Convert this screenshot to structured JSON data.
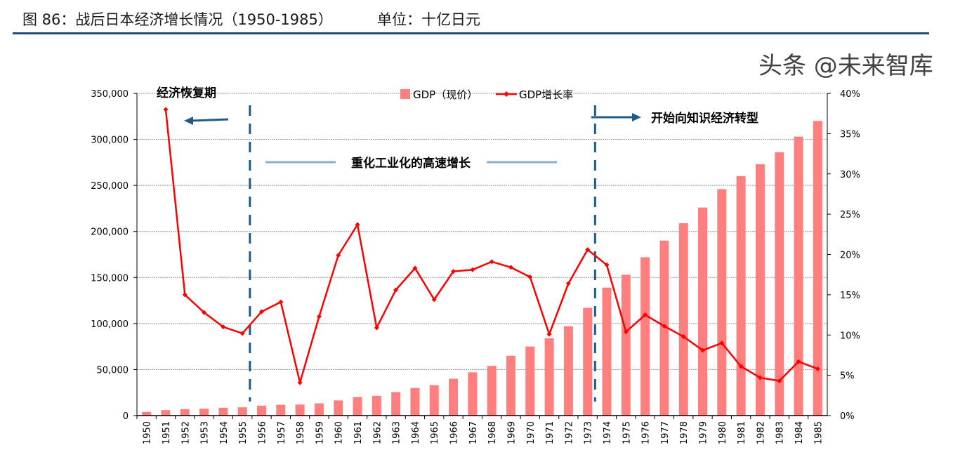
{
  "header": {
    "title": "图 86：战后日本经济增长情况（1950-1985）",
    "unit": "单位：十亿日元"
  },
  "watermark": "头条 @未来智库",
  "chart_data": {
    "type": "bar+line",
    "categories": [
      "1950",
      "1951",
      "1952",
      "1953",
      "1954",
      "1955",
      "1956",
      "1957",
      "1958",
      "1959",
      "1960",
      "1961",
      "1962",
      "1963",
      "1964",
      "1965",
      "1966",
      "1967",
      "1968",
      "1969",
      "1970",
      "1971",
      "1972",
      "1973",
      "1974",
      "1975",
      "1976",
      "1977",
      "1978",
      "1979",
      "1980",
      "1981",
      "1982",
      "1983",
      "1984",
      "1985"
    ],
    "series": [
      {
        "name": "GDP（现价）",
        "type": "bar",
        "axis": "left",
        "color": "#ff7f7f",
        "values": [
          4000,
          6000,
          7000,
          7500,
          8500,
          9000,
          10700,
          11700,
          12000,
          13300,
          16500,
          20000,
          21500,
          25500,
          30000,
          33000,
          40000,
          47000,
          54000,
          65000,
          75000,
          84000,
          97000,
          117000,
          139000,
          153000,
          172000,
          190000,
          209000,
          226000,
          246000,
          260000,
          273000,
          286000,
          303000,
          320000
        ]
      },
      {
        "name": "GDP增长率",
        "type": "line",
        "axis": "right",
        "color": "#ff0000",
        "values": [
          null,
          38.0,
          15.0,
          12.8,
          11.0,
          10.2,
          12.9,
          14.1,
          4.1,
          12.3,
          19.9,
          23.7,
          10.9,
          15.6,
          18.3,
          14.4,
          17.9,
          18.1,
          19.1,
          18.4,
          17.2,
          10.1,
          16.4,
          20.6,
          18.7,
          10.4,
          12.5,
          11.1,
          9.8,
          8.1,
          9.0,
          6.1,
          4.7,
          4.3,
          6.7,
          5.8
        ]
      }
    ],
    "left_axis": {
      "ylim": [
        0,
        350000
      ],
      "ticks": [
        "0",
        "50,000",
        "100,000",
        "150,000",
        "200,000",
        "250,000",
        "300,000",
        "350,000"
      ]
    },
    "right_axis": {
      "ylim": [
        0,
        40
      ],
      "ticks": [
        "0%",
        "5%",
        "10%",
        "15%",
        "20%",
        "25%",
        "30%",
        "35%",
        "40%"
      ]
    },
    "grid": true,
    "legend": "top-center",
    "annotations": {
      "recovery": "经济恢复期",
      "heavy": "重化工业化的高速增长",
      "knowledge": "开始向知识经济转型"
    },
    "dividers": [
      "1955",
      "1973"
    ]
  }
}
